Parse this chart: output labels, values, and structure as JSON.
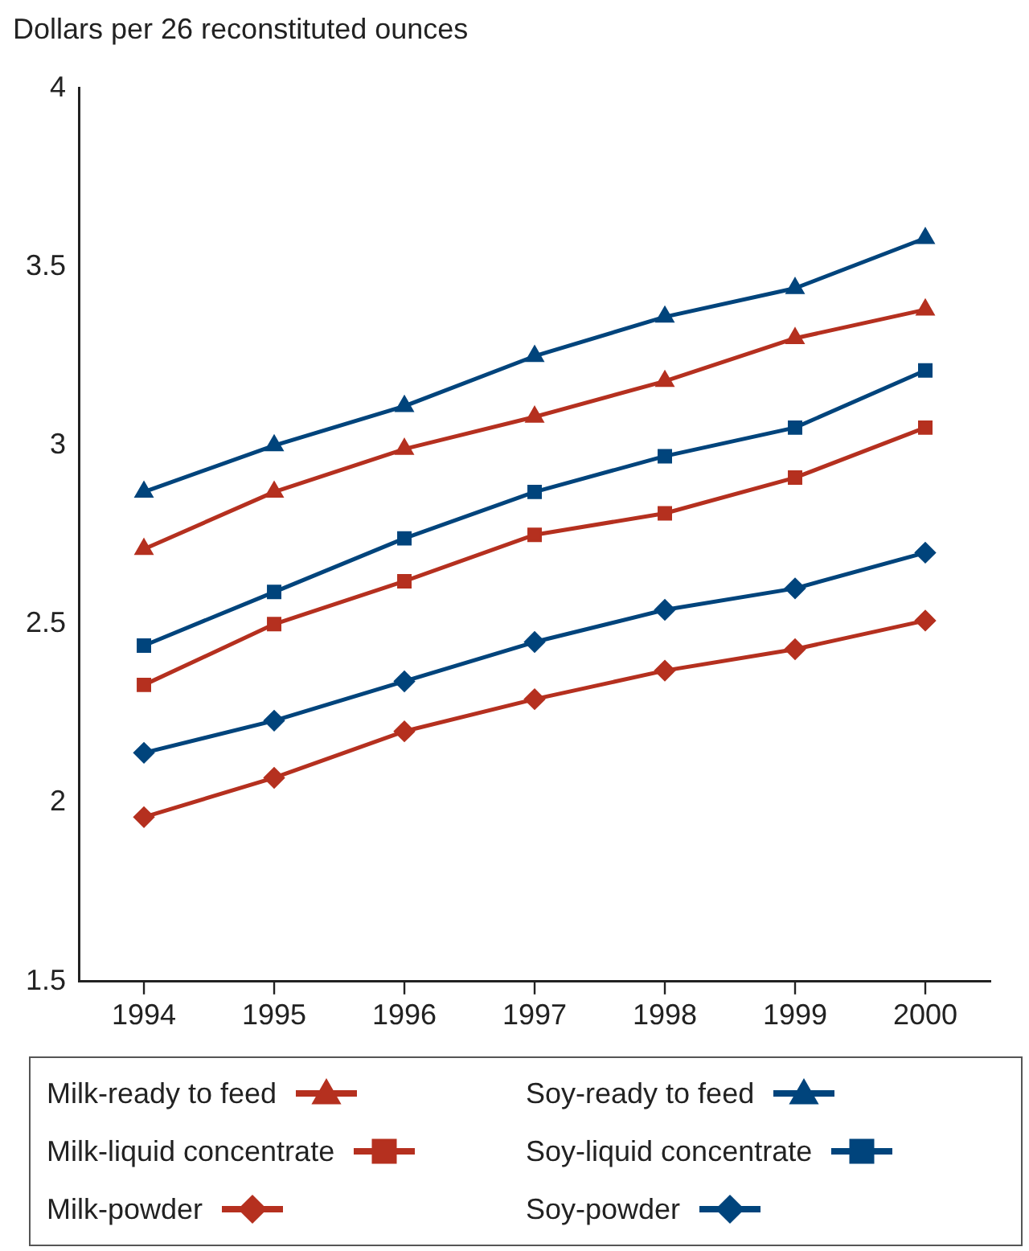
{
  "chart_data": {
    "type": "line",
    "ylabel": "Dollars per 26 reconstituted ounces",
    "categories": [
      "1994",
      "1995",
      "1996",
      "1997",
      "1998",
      "1999",
      "2000"
    ],
    "ylim": [
      1.5,
      4
    ],
    "yticks": [
      1.5,
      2,
      2.5,
      3,
      3.5,
      4
    ],
    "grid": false,
    "legend": "bottom",
    "line_style": "solid",
    "series": [
      {
        "name": "Milk-ready to feed",
        "color": "#b5301f",
        "marker": "triangle",
        "values": [
          2.71,
          2.87,
          2.99,
          3.08,
          3.18,
          3.3,
          3.38
        ]
      },
      {
        "name": "Milk-liquid concentrate",
        "color": "#b5301f",
        "marker": "square",
        "values": [
          2.33,
          2.5,
          2.62,
          2.75,
          2.81,
          2.91,
          3.05
        ]
      },
      {
        "name": "Milk-powder",
        "color": "#b5301f",
        "marker": "diamond",
        "values": [
          1.96,
          2.07,
          2.2,
          2.29,
          2.37,
          2.43,
          2.51
        ]
      },
      {
        "name": "Soy-ready to feed",
        "color": "#00447c",
        "marker": "triangle",
        "values": [
          2.87,
          3.0,
          3.11,
          3.25,
          3.36,
          3.44,
          3.58
        ]
      },
      {
        "name": "Soy-liquid concentrate",
        "color": "#00447c",
        "marker": "square",
        "values": [
          2.44,
          2.59,
          2.74,
          2.87,
          2.97,
          3.05,
          3.21
        ]
      },
      {
        "name": "Soy-powder",
        "color": "#00447c",
        "marker": "diamond",
        "values": [
          2.14,
          2.23,
          2.34,
          2.45,
          2.54,
          2.6,
          2.7
        ]
      }
    ]
  }
}
